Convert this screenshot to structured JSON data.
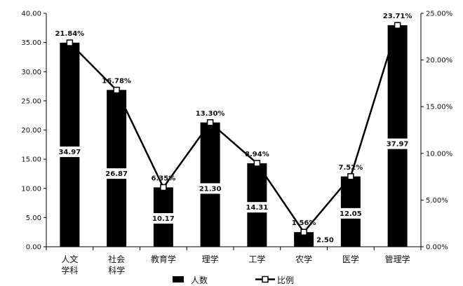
{
  "chart_data": {
    "type": "bar",
    "categories": [
      "人文\n学科",
      "社会\n科学",
      "教育学",
      "理学",
      "工学",
      "农学",
      "医学",
      "管理学"
    ],
    "series": [
      {
        "name": "人数",
        "type": "bar",
        "axis": "left",
        "values": [
          34.97,
          26.87,
          10.17,
          21.3,
          14.31,
          2.5,
          12.05,
          37.97
        ],
        "labels": [
          "34.97",
          "26.87",
          "10.17",
          "21.30",
          "14.31",
          "2.50",
          "12.05",
          "37.97"
        ],
        "color": "#000000"
      },
      {
        "name": "比例",
        "type": "line",
        "axis": "right",
        "values": [
          21.84,
          16.78,
          6.35,
          13.3,
          8.94,
          1.56,
          7.52,
          23.71
        ],
        "labels": [
          "21.84%",
          "16.78%",
          "6.35%",
          "13.30%",
          "8.94%",
          "1.56%",
          "7.52%",
          "23.71%"
        ],
        "color": "#000000",
        "marker": "hollow-square"
      }
    ],
    "left_axis": {
      "ylim": [
        0,
        40
      ],
      "ticks": [
        "0.00",
        "5.00",
        "10.00",
        "15.00",
        "20.00",
        "25.00",
        "30.00",
        "35.00",
        "40.00"
      ]
    },
    "right_axis": {
      "ylim": [
        0,
        25
      ],
      "ticks": [
        "0.00%",
        "5.00%",
        "10.00%",
        "15.00%",
        "20.00%",
        "25.00%"
      ]
    },
    "grid": false,
    "legend_position": "bottom"
  }
}
